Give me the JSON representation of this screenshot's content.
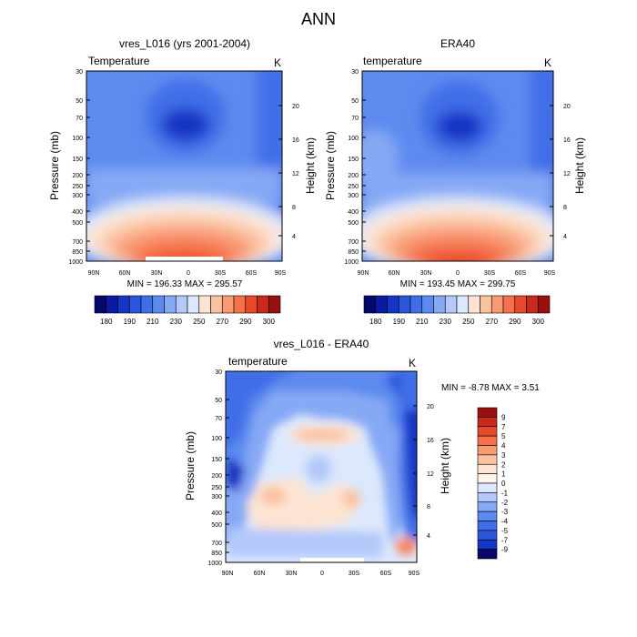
{
  "page_title": "ANN",
  "panels": {
    "model": {
      "title": "vres_L016 (yrs 2001-2004)",
      "left_label": "Temperature",
      "right_label": "K",
      "min_max": "MIN = 196.33   MAX = 295.57"
    },
    "obs": {
      "title": "ERA40",
      "left_label": "temperature",
      "right_label": "K",
      "min_max": "MIN = 193.45   MAX = 299.75"
    },
    "diff": {
      "title": "vres_L016 - ERA40",
      "left_label": "temperature",
      "right_label": "K",
      "min_max": "MIN =  -8.78  MAX =   3.51"
    }
  },
  "chart_data": [
    {
      "type": "heatmap",
      "name": "model-temperature",
      "title": "vres_L016 (yrs 2001-2004)",
      "xlabel": "",
      "ylabel": "Pressure (mb)",
      "y2label": "Height (km)",
      "x_ticks": [
        "90N",
        "60N",
        "30N",
        "0",
        "30S",
        "60S",
        "90S"
      ],
      "y_ticks": [
        30,
        50,
        70,
        100,
        150,
        200,
        250,
        300,
        400,
        500,
        700,
        850,
        1000
      ],
      "y2_ticks": [
        20,
        16,
        12,
        8,
        4
      ],
      "ylim": [
        1000,
        30
      ],
      "min": 196.33,
      "max": 295.57,
      "units": "K"
    },
    {
      "type": "heatmap",
      "name": "era40-temperature",
      "title": "ERA40",
      "xlabel": "",
      "ylabel": "Pressure (mb)",
      "y2label": "Height (km)",
      "x_ticks": [
        "90N",
        "60N",
        "30N",
        "0",
        "30S",
        "60S",
        "90S"
      ],
      "y_ticks": [
        30,
        50,
        70,
        100,
        150,
        200,
        250,
        300,
        400,
        500,
        700,
        850,
        1000
      ],
      "y2_ticks": [
        20,
        16,
        12,
        8,
        4
      ],
      "ylim": [
        1000,
        30
      ],
      "min": 193.45,
      "max": 299.75,
      "units": "K"
    },
    {
      "type": "heatmap",
      "name": "difference-temperature",
      "title": "vres_L016 - ERA40",
      "xlabel": "",
      "ylabel": "Pressure (mb)",
      "y2label": "Height (km)",
      "x_ticks": [
        "90N",
        "60N",
        "30N",
        "0",
        "30S",
        "60S",
        "90S"
      ],
      "y_ticks": [
        30,
        50,
        70,
        100,
        150,
        200,
        250,
        300,
        400,
        500,
        700,
        850,
        1000
      ],
      "y2_ticks": [
        20,
        16,
        12,
        8,
        4
      ],
      "ylim": [
        1000,
        30
      ],
      "min": -8.78,
      "max": 3.51,
      "units": "K"
    }
  ],
  "colorbars": {
    "absolute": {
      "labels": [
        "180",
        "190",
        "210",
        "230",
        "250",
        "270",
        "290",
        "300"
      ],
      "colors": [
        "#08086b",
        "#0a1ba3",
        "#1535c4",
        "#2a55dc",
        "#3f6ee8",
        "#5d8aef",
        "#86a9f5",
        "#b4c9f9",
        "#dce8fd",
        "#fde4d2",
        "#fbc2a2",
        "#f89a74",
        "#f5714c",
        "#e9492b",
        "#c9281a",
        "#96110f"
      ]
    },
    "difference": {
      "labels": [
        "9",
        "7",
        "5",
        "4",
        "3",
        "2",
        "1",
        "0",
        "-1",
        "-2",
        "-3",
        "-4",
        "-5",
        "-7",
        "-9"
      ],
      "colors": [
        "#96110f",
        "#c9281a",
        "#e9492b",
        "#f5714c",
        "#f89a74",
        "#fbc2a2",
        "#fde4d2",
        "#fef3ea",
        "#dce8fd",
        "#b4c9f9",
        "#86a9f5",
        "#5d8aef",
        "#3f6ee8",
        "#2a55dc",
        "#1535c4",
        "#08086b"
      ]
    }
  }
}
